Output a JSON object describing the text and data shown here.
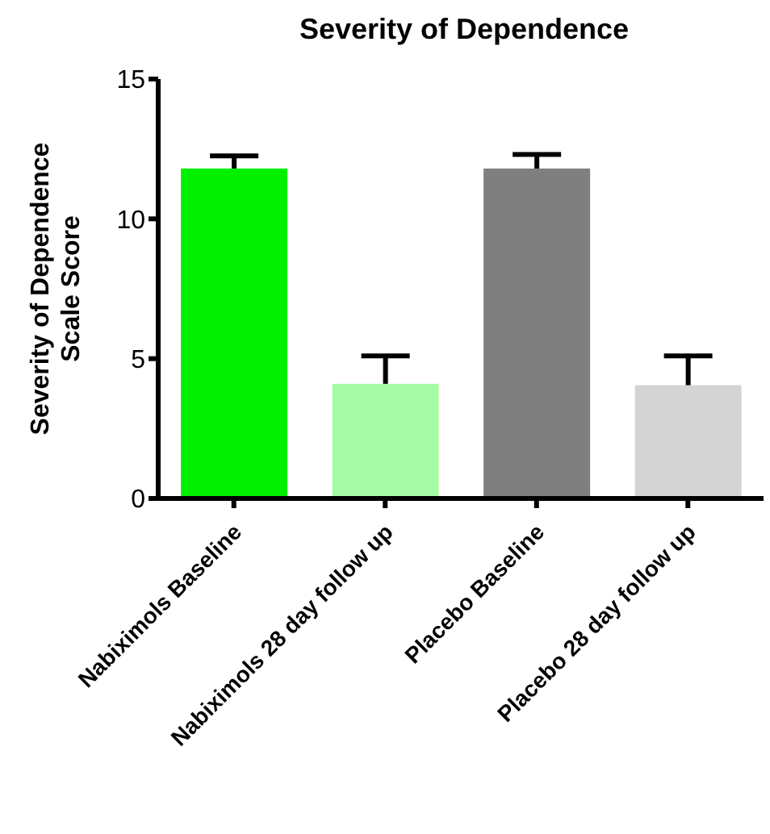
{
  "chart_data": {
    "type": "bar",
    "title": "Severity of Dependence",
    "ylabel": "Severity of Dependence Scale Score",
    "categories": [
      "Nabiximols Baseline",
      "Nabiximols 28 day follow up",
      "Placebo Baseline",
      "Placebo 28 day follow up"
    ],
    "values": [
      11.8,
      4.1,
      11.8,
      4.05
    ],
    "colors": [
      "#00f000",
      "#a6fca6",
      "#7f7f7f",
      "#d4d4d4"
    ],
    "errors": [
      [
        11.8,
        12.25
      ],
      [
        4.1,
        5.1
      ],
      [
        11.8,
        12.3
      ],
      [
        4.05,
        5.1
      ]
    ],
    "ylim": [
      0,
      15
    ],
    "yticks": [
      0,
      5,
      10,
      15
    ],
    "grid": false,
    "legend": false
  }
}
